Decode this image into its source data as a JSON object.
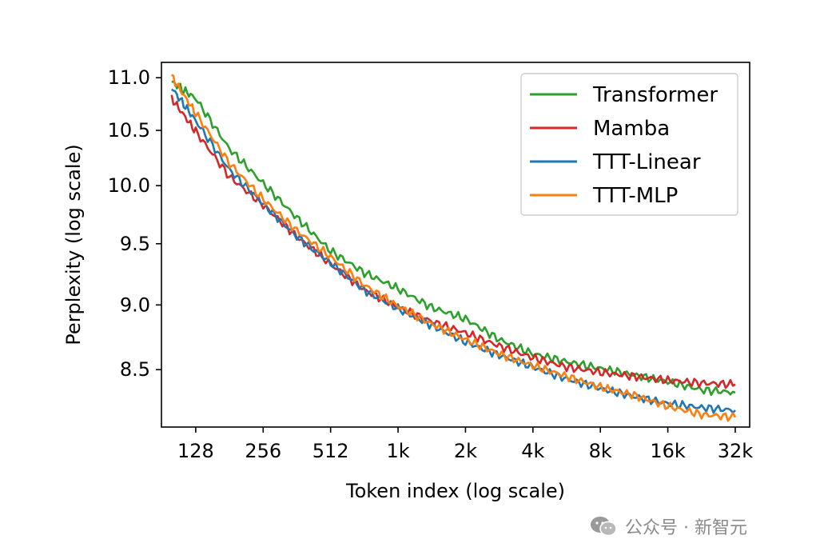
{
  "chart_data": {
    "type": "line",
    "title": "",
    "xlabel": "Token index (log scale)",
    "ylabel": "Perplexity (log scale)",
    "x_scale": "log2",
    "y_scale": "log",
    "xlim": [
      90,
      38000
    ],
    "ylim": [
      8.08,
      11.15
    ],
    "xticks": [
      128,
      256,
      512,
      1024,
      2048,
      4096,
      8192,
      16384,
      32768
    ],
    "xtick_labels": [
      "128",
      "256",
      "512",
      "1k",
      "2k",
      "4k",
      "8k",
      "16k",
      "32k"
    ],
    "yticks": [
      8.5,
      9.0,
      9.5,
      10.0,
      10.5,
      11.0
    ],
    "ytick_labels": [
      "8.5",
      "9.0",
      "9.5",
      "10.0",
      "10.5",
      "11.0"
    ],
    "grid": false,
    "legend_position": "upper-right",
    "x": [
      100,
      128,
      181,
      256,
      362,
      512,
      724,
      1024,
      1448,
      2048,
      2896,
      4096,
      5793,
      8192,
      11585,
      16384,
      23170,
      32768
    ],
    "series": [
      {
        "name": "Transformer",
        "color": "#2ca02c",
        "values": [
          10.96,
          10.8,
          10.33,
          10.02,
          9.72,
          9.44,
          9.26,
          9.13,
          8.98,
          8.89,
          8.73,
          8.62,
          8.56,
          8.51,
          8.46,
          8.41,
          8.35,
          8.33
        ]
      },
      {
        "name": "Mamba",
        "color": "#d62728",
        "values": [
          10.8,
          10.49,
          10.08,
          9.83,
          9.56,
          9.33,
          9.12,
          8.98,
          8.87,
          8.78,
          8.68,
          8.59,
          8.52,
          8.48,
          8.45,
          8.42,
          8.4,
          8.39
        ]
      },
      {
        "name": "TTT-Linear",
        "color": "#1f77b4",
        "values": [
          10.9,
          10.59,
          10.14,
          9.84,
          9.56,
          9.34,
          9.12,
          8.97,
          8.84,
          8.71,
          8.61,
          8.52,
          8.43,
          8.36,
          8.3,
          8.25,
          8.22,
          8.2
        ]
      },
      {
        "name": "TTT-MLP",
        "color": "#ff7f0e",
        "values": [
          11.01,
          10.66,
          10.2,
          9.88,
          9.61,
          9.39,
          9.16,
          8.99,
          8.85,
          8.73,
          8.62,
          8.53,
          8.45,
          8.37,
          8.31,
          8.23,
          8.17,
          8.15
        ]
      }
    ]
  },
  "watermark": {
    "text": "公众号 · 新智元",
    "icon": "wechat-icon"
  }
}
